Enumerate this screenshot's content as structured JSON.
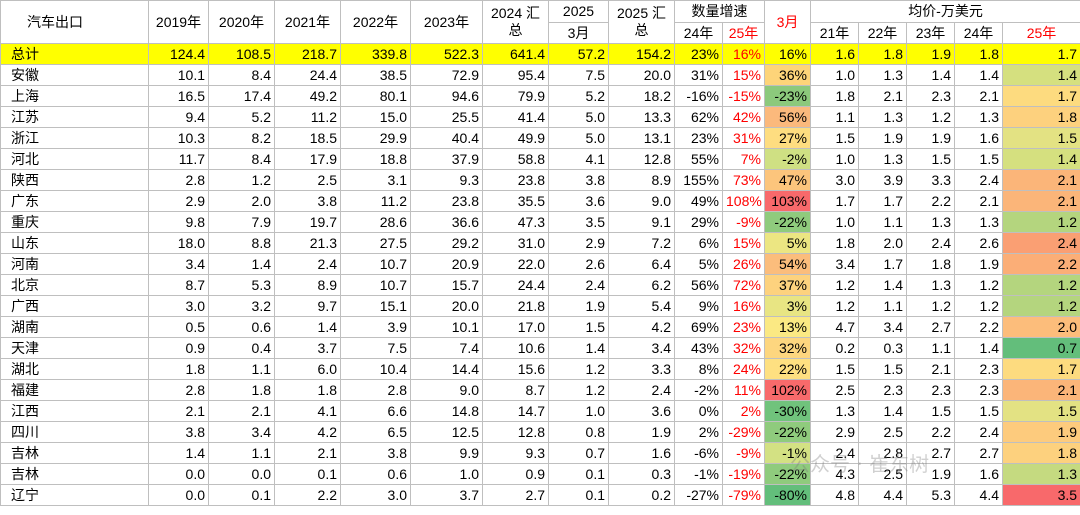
{
  "header": {
    "title": "汽车出口",
    "years": [
      "2019年",
      "2020年",
      "2021年",
      "2022年",
      "2023年"
    ],
    "y2024_total": "2024 汇总",
    "y2025_march_top": "2025",
    "y2025_march_bottom": "3月",
    "y2025_total": "2025 汇总",
    "growth_group": "数量增速",
    "growth_24": "24年",
    "growth_25": "25年",
    "growth_march": "3月",
    "price_group": "均价-万美元",
    "price_years": [
      "21年",
      "22年",
      "23年",
      "24年",
      "25年"
    ]
  },
  "rows": [
    {
      "name": "总计",
      "y2019": "124.4",
      "y2020": "108.5",
      "y2021": "218.7",
      "y2022": "339.8",
      "y2023": "522.3",
      "y2024": "641.4",
      "m2025": "57.2",
      "t2025": "154.2",
      "g24": "23%",
      "g25": "16%",
      "gm": "16%",
      "p21": "1.6",
      "p22": "1.8",
      "p23": "1.9",
      "p24": "1.8",
      "p25": "1.7",
      "gm_color": "#ffff00",
      "p25_color": "#ffff00"
    },
    {
      "name": "安徽",
      "y2019": "10.1",
      "y2020": "8.4",
      "y2021": "24.4",
      "y2022": "38.5",
      "y2023": "72.9",
      "y2024": "95.4",
      "m2025": "7.5",
      "t2025": "20.0",
      "g24": "31%",
      "g25": "15%",
      "gm": "36%",
      "p21": "1.0",
      "p22": "1.3",
      "p23": "1.4",
      "p24": "1.4",
      "p25": "1.4",
      "gm_color": "#fdd479",
      "p25_color": "#d5e07f"
    },
    {
      "name": "上海",
      "y2019": "16.5",
      "y2020": "17.4",
      "y2021": "49.2",
      "y2022": "80.1",
      "y2023": "94.6",
      "y2024": "79.9",
      "m2025": "5.2",
      "t2025": "18.2",
      "g24": "-16%",
      "g25": "-15%",
      "gm": "-23%",
      "p21": "1.8",
      "p22": "2.1",
      "p23": "2.3",
      "p24": "2.1",
      "p25": "1.7",
      "gm_color": "#8cc97c",
      "p25_color": "#fddb7f"
    },
    {
      "name": "江苏",
      "y2019": "9.4",
      "y2020": "5.2",
      "y2021": "11.2",
      "y2022": "15.0",
      "y2023": "25.5",
      "y2024": "41.4",
      "m2025": "5.0",
      "t2025": "13.3",
      "g24": "62%",
      "g25": "42%",
      "gm": "56%",
      "p21": "1.1",
      "p22": "1.3",
      "p23": "1.2",
      "p24": "1.3",
      "p25": "1.8",
      "gm_color": "#fbb97c",
      "p25_color": "#fdd17e"
    },
    {
      "name": "浙江",
      "y2019": "10.3",
      "y2020": "8.2",
      "y2021": "18.5",
      "y2022": "29.9",
      "y2023": "40.4",
      "y2024": "49.9",
      "m2025": "5.0",
      "t2025": "13.1",
      "g24": "23%",
      "g25": "31%",
      "gm": "27%",
      "p21": "1.5",
      "p22": "1.9",
      "p23": "1.9",
      "p24": "1.6",
      "p25": "1.5",
      "gm_color": "#fedd80",
      "p25_color": "#e3e283"
    },
    {
      "name": "河北",
      "y2019": "11.7",
      "y2020": "8.4",
      "y2021": "17.9",
      "y2022": "18.8",
      "y2023": "37.9",
      "y2024": "58.8",
      "m2025": "4.1",
      "t2025": "12.8",
      "g24": "55%",
      "g25": "7%",
      "gm": "-2%",
      "p21": "1.0",
      "p22": "1.3",
      "p23": "1.5",
      "p24": "1.5",
      "p25": "1.4",
      "gm_color": "#cfe083",
      "p25_color": "#d5e07f"
    },
    {
      "name": "陕西",
      "y2019": "2.8",
      "y2020": "1.2",
      "y2021": "2.5",
      "y2022": "3.1",
      "y2023": "9.3",
      "y2024": "23.8",
      "m2025": "3.8",
      "t2025": "8.9",
      "g24": "155%",
      "g25": "73%",
      "gm": "47%",
      "p21": "3.0",
      "p22": "3.9",
      "p23": "3.3",
      "p24": "2.4",
      "p25": "2.1",
      "gm_color": "#fcc57c",
      "p25_color": "#fbb579"
    },
    {
      "name": "广东",
      "y2019": "2.9",
      "y2020": "2.0",
      "y2021": "3.8",
      "y2022": "11.2",
      "y2023": "23.8",
      "y2024": "35.5",
      "m2025": "3.6",
      "t2025": "9.0",
      "g24": "49%",
      "g25": "108%",
      "gm": "103%",
      "p21": "1.7",
      "p22": "1.7",
      "p23": "2.2",
      "p24": "2.1",
      "p25": "2.1",
      "gm_color": "#f8696b",
      "p25_color": "#fbb579"
    },
    {
      "name": "重庆",
      "y2019": "9.8",
      "y2020": "7.9",
      "y2021": "19.7",
      "y2022": "28.6",
      "y2023": "36.6",
      "y2024": "47.3",
      "m2025": "3.5",
      "t2025": "9.1",
      "g24": "29%",
      "g25": "-9%",
      "gm": "-22%",
      "p21": "1.0",
      "p22": "1.1",
      "p23": "1.3",
      "p24": "1.3",
      "p25": "1.2",
      "gm_color": "#8fcb7d",
      "p25_color": "#b4d57e"
    },
    {
      "name": "山东",
      "y2019": "18.0",
      "y2020": "8.8",
      "y2021": "21.3",
      "y2022": "27.5",
      "y2023": "29.2",
      "y2024": "31.0",
      "m2025": "2.9",
      "t2025": "7.2",
      "g24": "6%",
      "g25": "15%",
      "gm": "5%",
      "p21": "1.8",
      "p22": "2.0",
      "p23": "2.4",
      "p24": "2.6",
      "p25": "2.4",
      "gm_color": "#ece682",
      "p25_color": "#fa9f73"
    },
    {
      "name": "河南",
      "y2019": "3.4",
      "y2020": "1.4",
      "y2021": "2.4",
      "y2022": "10.7",
      "y2023": "20.9",
      "y2024": "22.0",
      "m2025": "2.6",
      "t2025": "6.4",
      "g24": "5%",
      "g25": "26%",
      "gm": "54%",
      "p21": "3.4",
      "p22": "1.7",
      "p23": "1.8",
      "p24": "1.9",
      "p25": "2.2",
      "gm_color": "#fbbd7c",
      "p25_color": "#fbae77"
    },
    {
      "name": "北京",
      "y2019": "8.7",
      "y2020": "5.3",
      "y2021": "8.9",
      "y2022": "10.7",
      "y2023": "15.7",
      "y2024": "24.4",
      "m2025": "2.4",
      "t2025": "6.2",
      "g24": "56%",
      "g25": "72%",
      "gm": "37%",
      "p21": "1.2",
      "p22": "1.4",
      "p23": "1.3",
      "p24": "1.2",
      "p25": "1.2",
      "gm_color": "#fdd27e",
      "p25_color": "#b4d57e"
    },
    {
      "name": "广西",
      "y2019": "3.0",
      "y2020": "3.2",
      "y2021": "9.7",
      "y2022": "15.1",
      "y2023": "20.0",
      "y2024": "21.8",
      "m2025": "1.9",
      "t2025": "5.4",
      "g24": "9%",
      "g25": "16%",
      "gm": "3%",
      "p21": "1.2",
      "p22": "1.1",
      "p23": "1.2",
      "p24": "1.2",
      "p25": "1.2",
      "gm_color": "#e8e583",
      "p25_color": "#b4d57e"
    },
    {
      "name": "湖南",
      "y2019": "0.5",
      "y2020": "0.6",
      "y2021": "1.4",
      "y2022": "3.9",
      "y2023": "10.1",
      "y2024": "17.0",
      "m2025": "1.5",
      "t2025": "4.2",
      "g24": "69%",
      "g25": "23%",
      "gm": "13%",
      "p21": "4.7",
      "p22": "3.4",
      "p23": "2.7",
      "p24": "2.2",
      "p25": "2.0",
      "gm_color": "#fbe983",
      "p25_color": "#fcbd7b"
    },
    {
      "name": "天津",
      "y2019": "0.9",
      "y2020": "0.4",
      "y2021": "3.7",
      "y2022": "7.5",
      "y2023": "7.4",
      "y2024": "10.6",
      "m2025": "1.4",
      "t2025": "3.4",
      "g24": "43%",
      "g25": "32%",
      "gm": "32%",
      "p21": "0.2",
      "p22": "0.3",
      "p23": "1.1",
      "p24": "1.4",
      "p25": "0.7",
      "gm_color": "#fdd67f",
      "p25_color": "#63be7b"
    },
    {
      "name": "湖北",
      "y2019": "1.8",
      "y2020": "1.1",
      "y2021": "6.0",
      "y2022": "10.4",
      "y2023": "14.4",
      "y2024": "15.6",
      "m2025": "1.2",
      "t2025": "3.3",
      "g24": "8%",
      "g25": "24%",
      "gm": "22%",
      "p21": "1.5",
      "p22": "1.5",
      "p23": "2.1",
      "p24": "2.3",
      "p25": "1.7",
      "gm_color": "#fee081",
      "p25_color": "#fddb7f"
    },
    {
      "name": "福建",
      "y2019": "2.8",
      "y2020": "1.8",
      "y2021": "1.8",
      "y2022": "2.8",
      "y2023": "9.0",
      "y2024": "8.7",
      "m2025": "1.2",
      "t2025": "2.4",
      "g24": "-2%",
      "g25": "11%",
      "gm": "102%",
      "p21": "2.5",
      "p22": "2.3",
      "p23": "2.3",
      "p24": "2.3",
      "p25": "2.1",
      "gm_color": "#f86a6b",
      "p25_color": "#fbb579"
    },
    {
      "name": "江西",
      "y2019": "2.1",
      "y2020": "2.1",
      "y2021": "4.1",
      "y2022": "6.6",
      "y2023": "14.8",
      "y2024": "14.7",
      "m2025": "1.0",
      "t2025": "3.6",
      "g24": "0%",
      "g25": "2%",
      "gm": "-30%",
      "p21": "1.3",
      "p22": "1.4",
      "p23": "1.5",
      "p24": "1.5",
      "p25": "1.5",
      "gm_color": "#70c37c",
      "p25_color": "#e3e283"
    },
    {
      "name": "四川",
      "y2019": "3.8",
      "y2020": "3.4",
      "y2021": "4.2",
      "y2022": "6.5",
      "y2023": "12.5",
      "y2024": "12.8",
      "m2025": "0.8",
      "t2025": "1.9",
      "g24": "2%",
      "g25": "-29%",
      "gm": "-22%",
      "p21": "2.9",
      "p22": "2.5",
      "p23": "2.2",
      "p24": "2.4",
      "p25": "1.9",
      "gm_color": "#8fcb7d",
      "p25_color": "#fdcb7d"
    },
    {
      "name": "吉林",
      "y2019": "1.4",
      "y2020": "1.1",
      "y2021": "2.1",
      "y2022": "3.8",
      "y2023": "9.9",
      "y2024": "9.3",
      "m2025": "0.7",
      "t2025": "1.6",
      "g24": "-6%",
      "g25": "-9%",
      "gm": "-1%",
      "p21": "2.4",
      "p22": "2.8",
      "p23": "2.7",
      "p24": "2.7",
      "p25": "1.8",
      "gm_color": "#d3e183",
      "p25_color": "#fdd17e"
    },
    {
      "name": "吉林",
      "y2019": "0.0",
      "y2020": "0.0",
      "y2021": "0.1",
      "y2022": "0.6",
      "y2023": "1.0",
      "y2024": "0.9",
      "m2025": "0.1",
      "t2025": "0.3",
      "g24": "-1%",
      "g25": "-19%",
      "gm": "-22%",
      "p21": "4.3",
      "p22": "2.5",
      "p23": "1.9",
      "p24": "1.6",
      "p25": "1.3",
      "gm_color": "#8fcb7d",
      "p25_color": "#c5da80"
    },
    {
      "name": "辽宁",
      "y2019": "0.0",
      "y2020": "0.1",
      "y2021": "2.2",
      "y2022": "3.0",
      "y2023": "3.7",
      "y2024": "2.7",
      "m2025": "0.1",
      "t2025": "0.2",
      "g24": "-27%",
      "g25": "-79%",
      "gm": "-80%",
      "p21": "4.8",
      "p22": "4.4",
      "p23": "5.3",
      "p24": "4.4",
      "p25": "3.5",
      "gm_color": "#63be7b",
      "p25_color": "#f8696b"
    }
  ],
  "watermark": "公众号 · 崔东树"
}
